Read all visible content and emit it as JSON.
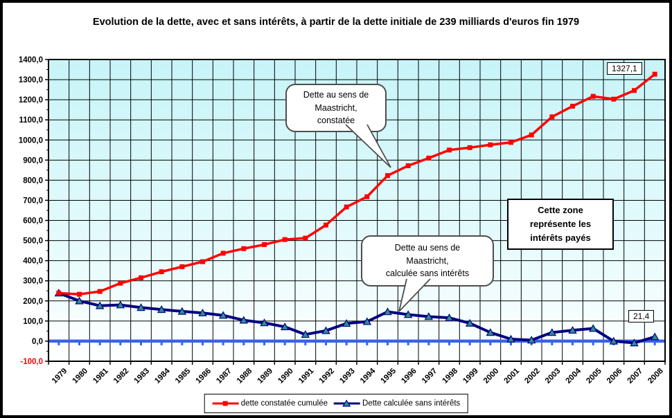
{
  "title": "Evolution de la dette, avec et sans intérêts, à partir de la dette initiale de 239 milliards d'euros fin 1979",
  "chart_data": {
    "type": "line",
    "x": [
      1979,
      1980,
      1981,
      1982,
      1983,
      1984,
      1985,
      1986,
      1987,
      1988,
      1989,
      1990,
      1991,
      1992,
      1993,
      1994,
      1995,
      1996,
      1997,
      1998,
      1999,
      2000,
      2001,
      2002,
      2003,
      2004,
      2005,
      2006,
      2007,
      2008
    ],
    "series": [
      {
        "name": "dette constatée cumulée",
        "color": "#FF0000",
        "marker": "square",
        "values": [
          239,
          233,
          247,
          288,
          315,
          345,
          370,
          395,
          437,
          460,
          480,
          505,
          512,
          577,
          667,
          718,
          823,
          872,
          910,
          950,
          962,
          976,
          988,
          1025,
          1115,
          1168,
          1217,
          1203,
          1246,
          1327.1
        ]
      },
      {
        "name": "Dette calculée sans intérêts",
        "color": "#000080",
        "marker": "triangle",
        "marker_fill": "#2E8F8F",
        "values": [
          239,
          200,
          176,
          180,
          167,
          157,
          148,
          140,
          128,
          104,
          91,
          71,
          33,
          52,
          88,
          97,
          146,
          132,
          122,
          116,
          89,
          43,
          10,
          5,
          43,
          54,
          63,
          0,
          -9,
          21.4
        ]
      }
    ],
    "ylim": [
      -100,
      1400
    ],
    "ytick_step": 100,
    "ytick_labels": [
      "-100,0",
      "0,0",
      "100,0",
      "200,0",
      "300,0",
      "400,0",
      "500,0",
      "600,0",
      "700,0",
      "800,0",
      "900,0",
      "1000,0",
      "1100,0",
      "1200,0",
      "1300,0",
      "1400,0"
    ],
    "negative_tick_color": "#FF0000",
    "grid": true,
    "legend_position": "bottom",
    "zero_line_color": "#3A62E8",
    "plot_bg_top": "#C7F4F8",
    "plot_bg_bottom": "#FFFFFF",
    "gridline_color": "#000000"
  },
  "annotations": {
    "callout_constatee": {
      "lines": [
        "Dette au sens de",
        "Maastricht,",
        "constatée"
      ]
    },
    "callout_sans_interets": {
      "lines": [
        "Dette au sens de",
        "Maastricht,",
        "calculée sans intérêts"
      ]
    },
    "zone_note": {
      "lines": [
        "Cette zone",
        "représente les",
        "intérêts payés"
      ]
    },
    "end_label_red": "1327,1",
    "end_label_blue": "21,4"
  }
}
